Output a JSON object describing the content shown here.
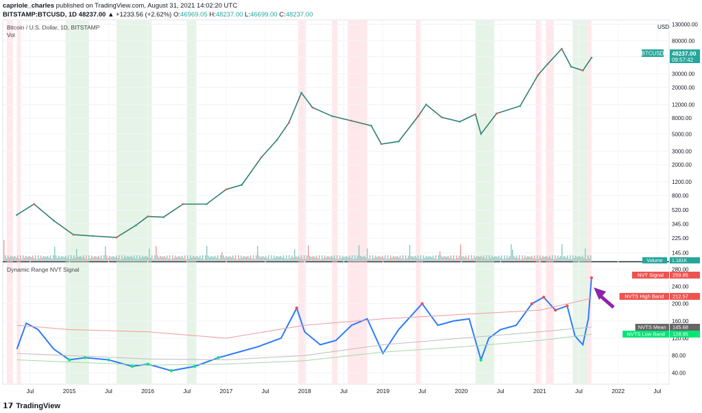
{
  "header": {
    "publisher": "capriole_charles",
    "published_text": "published on TradingView.com, August 31, 2021 14:02:20 UTC",
    "symbol": "BITSTAMP:BTCUSD, 1D",
    "last": "48237.00",
    "change": "▲ +1233.56 (+2.62%)",
    "o_label": "O:",
    "o": "46969.05",
    "h_label": "H:",
    "h": "48237.00",
    "l_label": "L:",
    "l": "46699.00",
    "c_label": "C:",
    "c": "48237.00"
  },
  "price_pane": {
    "title": "Bitcoin / U.S. Dollar, 1D, BITSTAMP",
    "subtitle": "Vol",
    "badge_label": "BTCUSD",
    "badge_price": "48237.00",
    "badge_time": "09:57:42",
    "volume_label": "Volume",
    "volume_value": "1.181K"
  },
  "nvt_pane": {
    "title": "Dynamic Range NVT Signal",
    "labels": [
      {
        "name": "NVT Signal",
        "value": "259.85",
        "color": "#ef5350"
      },
      {
        "name": "NVTS High Band",
        "value": "212.57",
        "color": "#ef5350"
      },
      {
        "name": "NVTS Mean",
        "value": "145.68",
        "color": "#666666"
      },
      {
        "name": "NVTS Low Band",
        "value": "128.95",
        "color": "#00e676"
      }
    ]
  },
  "footer": {
    "brand": "TradingView"
  },
  "chart_data": [
    {
      "type": "line",
      "title": "Bitcoin / U.S. Dollar, 1D, BITSTAMP",
      "yscale": "log",
      "currency": "USD",
      "y_ticks": [
        "130000.00",
        "80000.00",
        "50000.00",
        "30000.00",
        "20000.00",
        "12000.00",
        "8000.00",
        "5000.00",
        "3000.00",
        "2000.00",
        "1200.00",
        "800.00",
        "520.00",
        "345.00",
        "225.00",
        "145.00"
      ],
      "x_ticks": [
        "Jul",
        "2015",
        "Jul",
        "2016",
        "Jul",
        "2017",
        "Jul",
        "2018",
        "Jul",
        "2019",
        "Jul",
        "2020",
        "Jul",
        "2021",
        "Jul",
        "2022",
        "Jul"
      ],
      "series": [
        {
          "name": "BTCUSD",
          "x": [
            2014.33,
            2014.55,
            2014.8,
            2015.05,
            2015.3,
            2015.6,
            2015.85,
            2016.0,
            2016.2,
            2016.45,
            2016.75,
            2017.0,
            2017.2,
            2017.45,
            2017.65,
            2017.8,
            2017.96,
            2018.1,
            2018.35,
            2018.6,
            2018.85,
            2018.98,
            2019.2,
            2019.45,
            2019.55,
            2019.75,
            2019.98,
            2020.18,
            2020.25,
            2020.45,
            2020.75,
            2020.98,
            2021.1,
            2021.28,
            2021.4,
            2021.55,
            2021.66
          ],
          "values": [
            450,
            620,
            380,
            250,
            240,
            230,
            330,
            430,
            420,
            620,
            620,
            960,
            1100,
            2500,
            4200,
            7000,
            17000,
            11000,
            8500,
            7400,
            6400,
            3700,
            4000,
            8500,
            12000,
            8200,
            7200,
            9000,
            5000,
            9200,
            11500,
            29000,
            40000,
            63000,
            37000,
            33000,
            48237
          ]
        }
      ]
    },
    {
      "type": "line",
      "title": "Dynamic Range NVT Signal",
      "y_ticks": [
        "280.00",
        "240.00",
        "200.00",
        "160.00",
        "120.00",
        "80.00",
        "40.00"
      ],
      "x_ticks": [
        "Jul",
        "2015",
        "Jul",
        "2016",
        "Jul",
        "2017",
        "Jul",
        "2018",
        "Jul",
        "2019",
        "Jul",
        "2020",
        "Jul",
        "2021",
        "Jul",
        "2022",
        "Jul"
      ],
      "series": [
        {
          "name": "NVT Signal",
          "x": [
            2014.33,
            2014.45,
            2014.6,
            2014.8,
            2015.0,
            2015.2,
            2015.5,
            2015.8,
            2016.0,
            2016.3,
            2016.6,
            2016.9,
            2017.1,
            2017.4,
            2017.7,
            2017.9,
            2018.0,
            2018.2,
            2018.4,
            2018.6,
            2018.8,
            2019.0,
            2019.2,
            2019.5,
            2019.7,
            2019.9,
            2020.1,
            2020.25,
            2020.35,
            2020.5,
            2020.7,
            2020.9,
            2021.05,
            2021.2,
            2021.35,
            2021.45,
            2021.55,
            2021.62,
            2021.66
          ],
          "values": [
            95,
            155,
            140,
            95,
            70,
            75,
            70,
            55,
            60,
            45,
            55,
            75,
            85,
            100,
            120,
            190,
            135,
            105,
            115,
            150,
            165,
            85,
            140,
            200,
            150,
            160,
            165,
            70,
            120,
            140,
            150,
            200,
            215,
            185,
            195,
            125,
            105,
            165,
            260
          ]
        },
        {
          "name": "NVTS High Band",
          "x": [
            2014.33,
            2015.0,
            2016.0,
            2017.0,
            2018.0,
            2019.0,
            2020.0,
            2021.0,
            2021.66
          ],
          "values": [
            150,
            140,
            135,
            120,
            150,
            165,
            175,
            185,
            212.57
          ]
        },
        {
          "name": "NVTS Mean",
          "x": [
            2014.33,
            2015.0,
            2016.0,
            2017.0,
            2018.0,
            2019.0,
            2020.0,
            2021.0,
            2021.66
          ],
          "values": [
            85,
            80,
            72,
            70,
            80,
            105,
            120,
            135,
            145.68
          ]
        },
        {
          "name": "NVTS Low Band",
          "x": [
            2014.33,
            2015.0,
            2016.0,
            2017.0,
            2018.0,
            2019.0,
            2020.0,
            2021.0,
            2021.66
          ],
          "values": [
            70,
            65,
            58,
            60,
            68,
            88,
            100,
            115,
            128.95
          ]
        }
      ]
    }
  ]
}
